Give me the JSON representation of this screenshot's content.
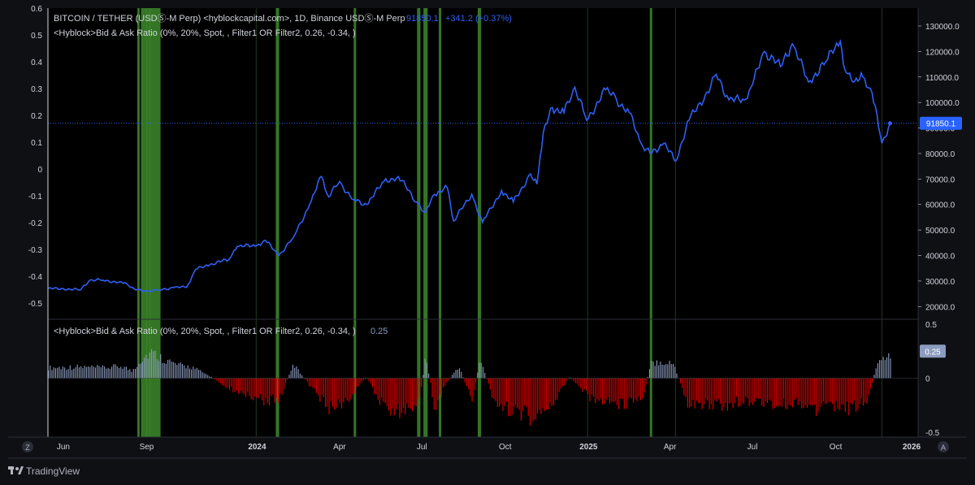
{
  "header": {
    "symbol_line": "BITCOIN / TETHER (USDⓈ-M Perp) <hyblockcapital.com>, 1D, Binance USDⓈ-M Perp",
    "last_price": "91850.1",
    "change": "+341.2 (+0.37%)",
    "indicator_line": "<Hyblock>Bid & Ask Ratio (0%, 20%, Spot, , Filter1 OR Filter2, 0.26, -0.34, )"
  },
  "lower_pane": {
    "legend": "<Hyblock>Bid & Ask Ratio (0%, 20%, Spot, , Filter1 OR Filter2, 0.26, -0.34, )",
    "value": "0.25"
  },
  "price_badge": "91850.1",
  "ratio_badge": "0.25",
  "time_axis": {
    "labels": [
      "Jun",
      "Sep",
      "2024",
      "Apr",
      "Jul",
      "Oct",
      "2025",
      "Apr",
      "Jul",
      "Oct",
      "2026"
    ],
    "zoom_left_label": "Z",
    "auto_right_label": "A"
  },
  "brand": {
    "name": "TradingView"
  },
  "colors": {
    "background": "#0e1014",
    "price_line": "#2f5ff5",
    "positive_bar": "#8c9cbf",
    "negative_bar": "#e50000",
    "signal_band": "#3d8a2c",
    "badge": "#2962ff"
  },
  "chart_data": [
    {
      "type": "line",
      "title": "BITCOIN / TETHER (USDⓈ-M Perp)",
      "series": [
        {
          "name": "",
          "x": [
            "2023-05-15",
            "2023-06-01",
            "2023-06-20",
            "2023-07-01",
            "2023-07-15",
            "2023-08-01",
            "2023-08-10",
            "2023-08-20",
            "2023-09-01",
            "2023-09-15",
            "2023-10-01",
            "2023-10-15",
            "2023-10-25",
            "2023-11-10",
            "2023-12-01",
            "2023-12-10",
            "2024-01-01",
            "2024-01-10",
            "2024-01-25",
            "2024-02-10",
            "2024-02-28",
            "2024-03-12",
            "2024-03-20",
            "2024-04-01",
            "2024-04-15",
            "2024-05-01",
            "2024-05-20",
            "2024-06-05",
            "2024-06-25",
            "2024-07-05",
            "2024-07-15",
            "2024-07-29",
            "2024-08-05",
            "2024-08-25",
            "2024-09-06",
            "2024-09-27",
            "2024-10-10",
            "2024-10-29",
            "2024-11-05",
            "2024-11-12",
            "2024-11-22",
            "2024-12-05",
            "2024-12-17",
            "2024-12-30",
            "2025-01-20",
            "2025-02-01",
            "2025-02-15",
            "2025-02-28",
            "2025-03-10",
            "2025-03-25",
            "2025-04-07",
            "2025-04-22",
            "2025-05-10",
            "2025-05-22",
            "2025-06-05",
            "2025-06-22",
            "2025-07-01",
            "2025-07-14",
            "2025-08-01",
            "2025-08-14",
            "2025-09-01",
            "2025-09-20",
            "2025-10-06",
            "2025-10-11",
            "2025-10-20",
            "2025-10-31",
            "2025-11-10",
            "2025-11-21",
            "2025-11-30"
          ],
          "values": [
            27000,
            27000,
            26500,
            30500,
            30300,
            29500,
            29000,
            26500,
            26000,
            26500,
            27500,
            27500,
            34500,
            36500,
            38500,
            43500,
            44000,
            46000,
            40000,
            47000,
            60000,
            71000,
            63000,
            69000,
            62000,
            60000,
            69000,
            71000,
            61000,
            57000,
            64000,
            66500,
            53500,
            64000,
            53000,
            65500,
            61000,
            72000,
            68000,
            88000,
            98000,
            96000,
            106000,
            93000,
            105000,
            101000,
            96000,
            84000,
            80000,
            84000,
            77000,
            93000,
            103000,
            111000,
            101000,
            101000,
            107000,
            120000,
            114000,
            123000,
            108000,
            116000,
            124000,
            113000,
            108000,
            110000,
            104000,
            84000,
            91850
          ]
        }
      ],
      "ylim": [
        15000,
        137000
      ],
      "yticks": [
        20000,
        30000,
        40000,
        50000,
        60000,
        70000,
        80000,
        90000,
        100000,
        110000,
        120000,
        130000
      ],
      "ytick_labels": [
        "20000.0",
        "30000.0",
        "40000.0",
        "50000.0",
        "60000.0",
        "70000.0",
        "80000.0",
        "90000.0",
        "100000.0",
        "110000.0",
        "120000.0",
        "130000.0"
      ],
      "left_axis": {
        "ylim": [
          -0.56,
          0.6
        ],
        "ticks": [
          -0.5,
          -0.4,
          -0.3,
          -0.2,
          -0.1,
          0,
          0.1,
          0.2,
          0.3,
          0.4,
          0.5,
          0.6
        ],
        "labels": [
          "-0.5",
          "-0.4",
          "-0.3",
          "-0.2",
          "-0.1",
          "0",
          "0.1",
          "0.2",
          "0.3",
          "0.4",
          "0.5",
          "0.6"
        ]
      },
      "highlight_bands": [
        [
          "2023-08-23",
          "2023-08-23"
        ],
        [
          "2023-08-27",
          "2023-08-31"
        ],
        [
          "2023-09-02",
          "2023-09-04"
        ],
        [
          "2023-09-06",
          "2023-09-15"
        ],
        [
          "2024-01-23",
          "2024-01-24"
        ],
        [
          "2024-04-18",
          "2024-04-18"
        ],
        [
          "2024-06-27",
          "2024-06-28"
        ],
        [
          "2024-07-04",
          "2024-07-06"
        ],
        [
          "2024-07-21",
          "2024-07-21"
        ],
        [
          "2024-09-02",
          "2024-09-03"
        ],
        [
          "2025-03-11",
          "2025-03-11"
        ]
      ],
      "price_reference": 91850.1
    },
    {
      "type": "bar",
      "title": "<Hyblock>Bid & Ask Ratio",
      "ylim": [
        -0.5,
        0.5
      ],
      "yticks": [
        -0.5,
        0,
        0.5
      ],
      "ytick_labels": [
        "-0.5",
        "0",
        "0.5"
      ],
      "series": [
        {
          "name": "",
          "x": [
            "2023-05-15",
            "2023-06-15",
            "2023-07-15",
            "2023-08-05",
            "2023-08-15",
            "2023-08-25",
            "2023-09-05",
            "2023-09-20",
            "2023-10-05",
            "2023-10-20",
            "2023-11-10",
            "2023-12-01",
            "2023-12-20",
            "2024-01-10",
            "2024-01-25",
            "2024-02-10",
            "2024-03-01",
            "2024-03-20",
            "2024-04-10",
            "2024-04-30",
            "2024-05-20",
            "2024-06-10",
            "2024-06-27",
            "2024-07-05",
            "2024-07-15",
            "2024-07-25",
            "2024-08-10",
            "2024-08-25",
            "2024-09-03",
            "2024-09-20",
            "2024-10-10",
            "2024-11-01",
            "2024-11-20",
            "2024-12-10",
            "2025-01-01",
            "2025-01-20",
            "2025-02-10",
            "2025-03-01",
            "2025-03-11",
            "2025-03-20",
            "2025-04-05",
            "2025-04-20",
            "2025-05-10",
            "2025-06-01",
            "2025-06-20",
            "2025-07-10",
            "2025-08-01",
            "2025-08-20",
            "2025-09-10",
            "2025-10-01",
            "2025-10-20",
            "2025-11-05",
            "2025-11-15",
            "2025-11-30"
          ],
          "values": [
            0.12,
            0.13,
            0.12,
            0.14,
            0.08,
            0.21,
            0.3,
            0.22,
            0.15,
            0.13,
            0.02,
            -0.12,
            -0.18,
            -0.26,
            -0.25,
            0.16,
            -0.12,
            -0.35,
            -0.26,
            0.02,
            -0.36,
            -0.38,
            -0.29,
            0.25,
            -0.38,
            -0.1,
            0.14,
            -0.25,
            0.22,
            -0.34,
            -0.36,
            -0.46,
            -0.33,
            0.02,
            -0.22,
            -0.28,
            -0.3,
            -0.22,
            0.17,
            0.2,
            0.16,
            -0.32,
            -0.3,
            -0.32,
            -0.25,
            -0.28,
            -0.32,
            -0.28,
            -0.36,
            -0.34,
            -0.35,
            -0.26,
            0.16,
            0.25
          ]
        }
      ]
    }
  ]
}
